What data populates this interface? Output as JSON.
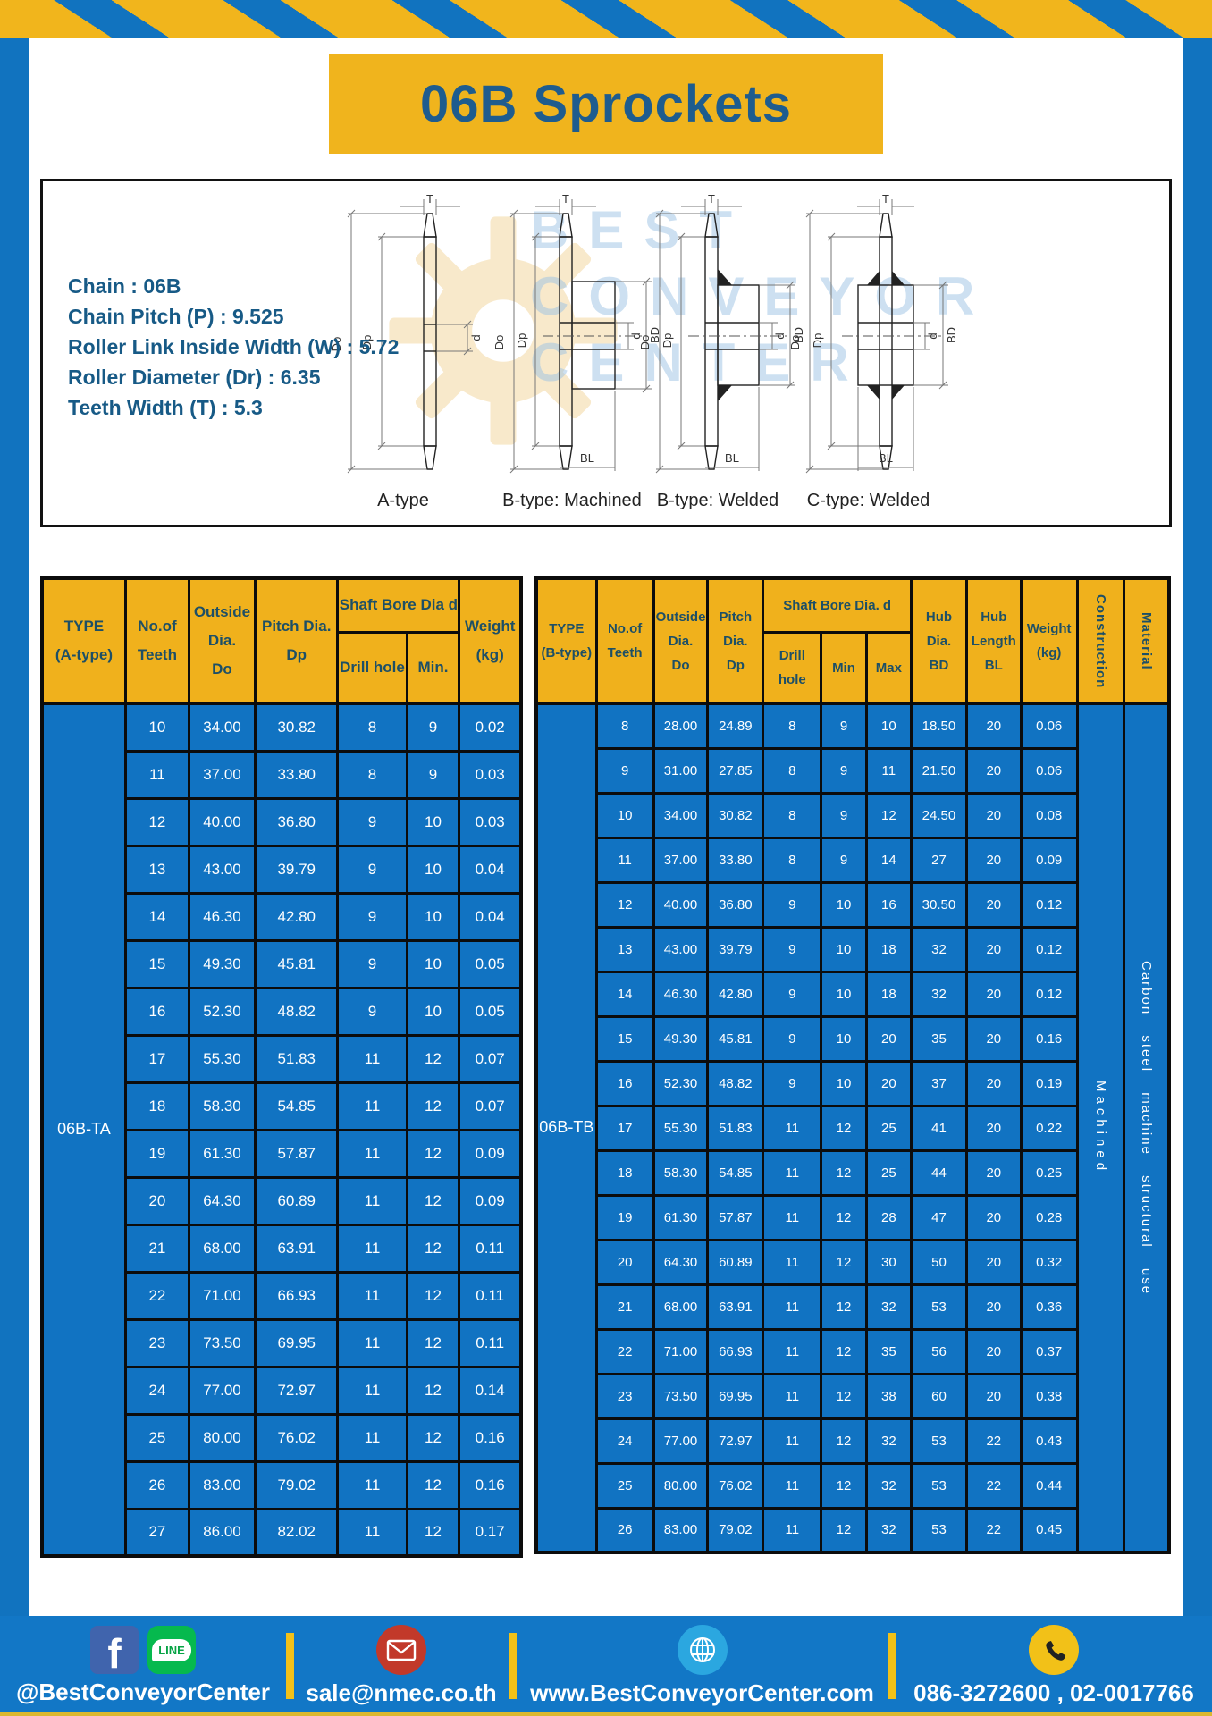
{
  "title": "06B Sprockets",
  "specs": [
    "Chain  : 06B",
    "Chain Pitch (P)  :  9.525",
    "Roller Link Inside Width (W)  :  5.72",
    "Roller Diameter (Dr)  : 6.35",
    "Teeth Width (T)  :  5.3"
  ],
  "watermark": {
    "l1": "BEST",
    "l2": "CONVEYOR",
    "l3": "CENTER"
  },
  "diagrams": {
    "captions": [
      "A-type",
      "B-type: Machined",
      "B-type: Welded",
      "C-type: Welded"
    ],
    "labels": {
      "T": "T",
      "Do": "Do",
      "Dp": "Dp",
      "d": "d",
      "BD": "BD",
      "BL": "BL"
    }
  },
  "table_a": {
    "headers": {
      "type": "TYPE\n(A-type)",
      "teeth": "No.of\nTeeth",
      "outside": "Outside\nDia.\nDo",
      "pitch": "Pitch Dia.\nDp",
      "shaft_bore": "Shaft Bore Dia d",
      "drill": "Drill hole",
      "min": "Min.",
      "weight": "Weight\n(kg)"
    },
    "type_label": "06B-TA",
    "rows": [
      [
        "10",
        "34.00",
        "30.82",
        "8",
        "9",
        "0.02"
      ],
      [
        "11",
        "37.00",
        "33.80",
        "8",
        "9",
        "0.03"
      ],
      [
        "12",
        "40.00",
        "36.80",
        "9",
        "10",
        "0.03"
      ],
      [
        "13",
        "43.00",
        "39.79",
        "9",
        "10",
        "0.04"
      ],
      [
        "14",
        "46.30",
        "42.80",
        "9",
        "10",
        "0.04"
      ],
      [
        "15",
        "49.30",
        "45.81",
        "9",
        "10",
        "0.05"
      ],
      [
        "16",
        "52.30",
        "48.82",
        "9",
        "10",
        "0.05"
      ],
      [
        "17",
        "55.30",
        "51.83",
        "11",
        "12",
        "0.07"
      ],
      [
        "18",
        "58.30",
        "54.85",
        "11",
        "12",
        "0.07"
      ],
      [
        "19",
        "61.30",
        "57.87",
        "11",
        "12",
        "0.09"
      ],
      [
        "20",
        "64.30",
        "60.89",
        "11",
        "12",
        "0.09"
      ],
      [
        "21",
        "68.00",
        "63.91",
        "11",
        "12",
        "0.11"
      ],
      [
        "22",
        "71.00",
        "66.93",
        "11",
        "12",
        "0.11"
      ],
      [
        "23",
        "73.50",
        "69.95",
        "11",
        "12",
        "0.11"
      ],
      [
        "24",
        "77.00",
        "72.97",
        "11",
        "12",
        "0.14"
      ],
      [
        "25",
        "80.00",
        "76.02",
        "11",
        "12",
        "0.16"
      ],
      [
        "26",
        "83.00",
        "79.02",
        "11",
        "12",
        "0.16"
      ],
      [
        "27",
        "86.00",
        "82.02",
        "11",
        "12",
        "0.17"
      ]
    ]
  },
  "table_b": {
    "headers": {
      "type": "TYPE\n(B-type)",
      "teeth": "No.of\nTeeth",
      "outside": "Outside\nDia.\nDo",
      "pitch": "Pitch\nDia.\nDp",
      "shaft_bore": "Shaft Bore Dia.  d",
      "drill": "Drill hole",
      "min": "Min",
      "max": "Max",
      "hub_dia": "Hub\nDia.\nBD",
      "hub_len": "Hub\nLength\nBL",
      "weight": "Weight\n(kg)",
      "construction": "Construction",
      "material": "Material"
    },
    "type_label": "06B-TB",
    "construction_value": "Machined",
    "material_value": "Carbon steel machine structural use",
    "rows": [
      [
        "8",
        "28.00",
        "24.89",
        "8",
        "9",
        "10",
        "18.50",
        "20",
        "0.06"
      ],
      [
        "9",
        "31.00",
        "27.85",
        "8",
        "9",
        "11",
        "21.50",
        "20",
        "0.06"
      ],
      [
        "10",
        "34.00",
        "30.82",
        "8",
        "9",
        "12",
        "24.50",
        "20",
        "0.08"
      ],
      [
        "11",
        "37.00",
        "33.80",
        "8",
        "9",
        "14",
        "27",
        "20",
        "0.09"
      ],
      [
        "12",
        "40.00",
        "36.80",
        "9",
        "10",
        "16",
        "30.50",
        "20",
        "0.12"
      ],
      [
        "13",
        "43.00",
        "39.79",
        "9",
        "10",
        "18",
        "32",
        "20",
        "0.12"
      ],
      [
        "14",
        "46.30",
        "42.80",
        "9",
        "10",
        "18",
        "32",
        "20",
        "0.12"
      ],
      [
        "15",
        "49.30",
        "45.81",
        "9",
        "10",
        "20",
        "35",
        "20",
        "0.16"
      ],
      [
        "16",
        "52.30",
        "48.82",
        "9",
        "10",
        "20",
        "37",
        "20",
        "0.19"
      ],
      [
        "17",
        "55.30",
        "51.83",
        "11",
        "12",
        "25",
        "41",
        "20",
        "0.22"
      ],
      [
        "18",
        "58.30",
        "54.85",
        "11",
        "12",
        "25",
        "44",
        "20",
        "0.25"
      ],
      [
        "19",
        "61.30",
        "57.87",
        "11",
        "12",
        "28",
        "47",
        "20",
        "0.28"
      ],
      [
        "20",
        "64.30",
        "60.89",
        "11",
        "12",
        "30",
        "50",
        "20",
        "0.32"
      ],
      [
        "21",
        "68.00",
        "63.91",
        "11",
        "12",
        "32",
        "53",
        "20",
        "0.36"
      ],
      [
        "22",
        "71.00",
        "66.93",
        "11",
        "12",
        "35",
        "56",
        "20",
        "0.37"
      ],
      [
        "23",
        "73.50",
        "69.95",
        "11",
        "12",
        "38",
        "60",
        "20",
        "0.38"
      ],
      [
        "24",
        "77.00",
        "72.97",
        "11",
        "12",
        "32",
        "53",
        "22",
        "0.43"
      ],
      [
        "25",
        "80.00",
        "76.02",
        "11",
        "12",
        "32",
        "53",
        "22",
        "0.44"
      ],
      [
        "26",
        "83.00",
        "79.02",
        "11",
        "12",
        "32",
        "53",
        "22",
        "0.45"
      ]
    ]
  },
  "footer": {
    "fb_letter": "f",
    "line_text": "LINE",
    "facebook_handle": "@BestConveyorCenter",
    "email": "sale@nmec.co.th",
    "website": "www.BestConveyorCenter.com",
    "phones": "086-3272600 , 02-0017766"
  }
}
